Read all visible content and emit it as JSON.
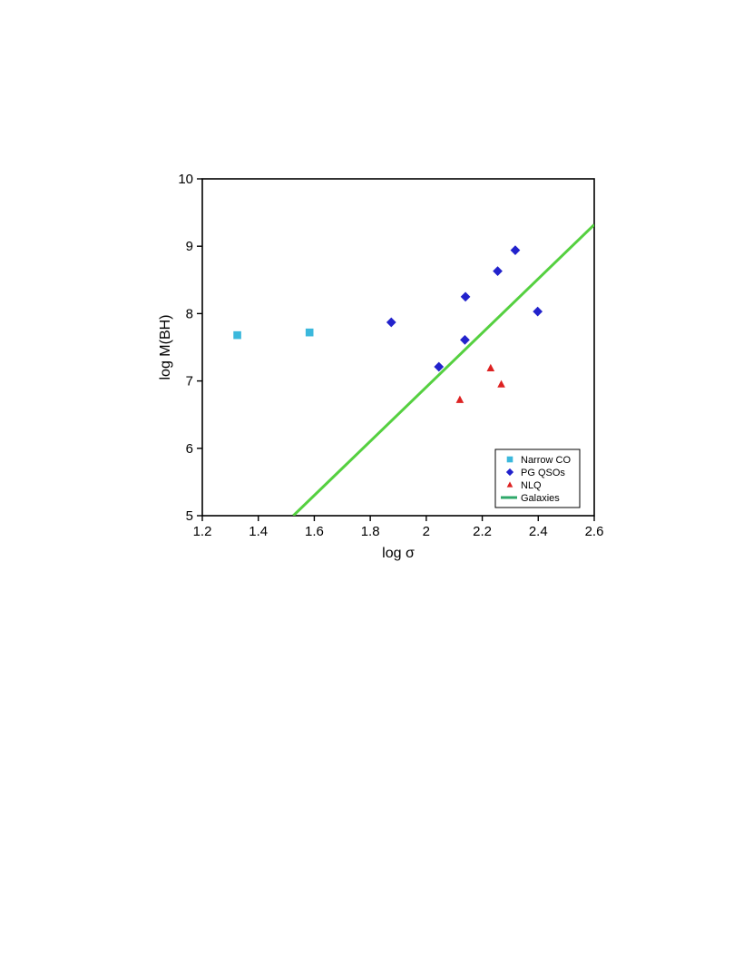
{
  "chart_data": {
    "type": "scatter",
    "xlabel": "log σ",
    "ylabel": "log M(BH)",
    "xlim": [
      1.2,
      2.6
    ],
    "ylim": [
      5,
      10
    ],
    "xticks": [
      "1.2",
      "1.4",
      "1.6",
      "1.8",
      "2",
      "2.2",
      "2.4",
      "2.6"
    ],
    "yticks": [
      "5",
      "6",
      "7",
      "8",
      "9",
      "10"
    ],
    "grid": false,
    "legend_position": "bottom-right",
    "series": [
      {
        "name": "Narrow CO",
        "marker": "square",
        "color": "#3bb8dc",
        "points": [
          {
            "x": 1.325,
            "y": 7.68
          },
          {
            "x": 1.583,
            "y": 7.72
          }
        ]
      },
      {
        "name": "PG QSOs",
        "marker": "diamond",
        "color": "#2222cc",
        "points": [
          {
            "x": 1.875,
            "y": 7.87
          },
          {
            "x": 2.045,
            "y": 7.21
          },
          {
            "x": 2.138,
            "y": 7.61
          },
          {
            "x": 2.14,
            "y": 8.25
          },
          {
            "x": 2.255,
            "y": 8.63
          },
          {
            "x": 2.318,
            "y": 8.94
          },
          {
            "x": 2.398,
            "y": 8.03
          }
        ]
      },
      {
        "name": "NLQ",
        "marker": "triangle",
        "color": "#dd2222",
        "points": [
          {
            "x": 2.12,
            "y": 6.72
          },
          {
            "x": 2.23,
            "y": 7.19
          },
          {
            "x": 2.268,
            "y": 6.95
          }
        ]
      },
      {
        "name": "Galaxies",
        "marker": "line",
        "color": "#55d040",
        "points": [
          {
            "x": 1.525,
            "y": 5.0
          },
          {
            "x": 2.6,
            "y": 9.32
          }
        ]
      }
    ]
  }
}
